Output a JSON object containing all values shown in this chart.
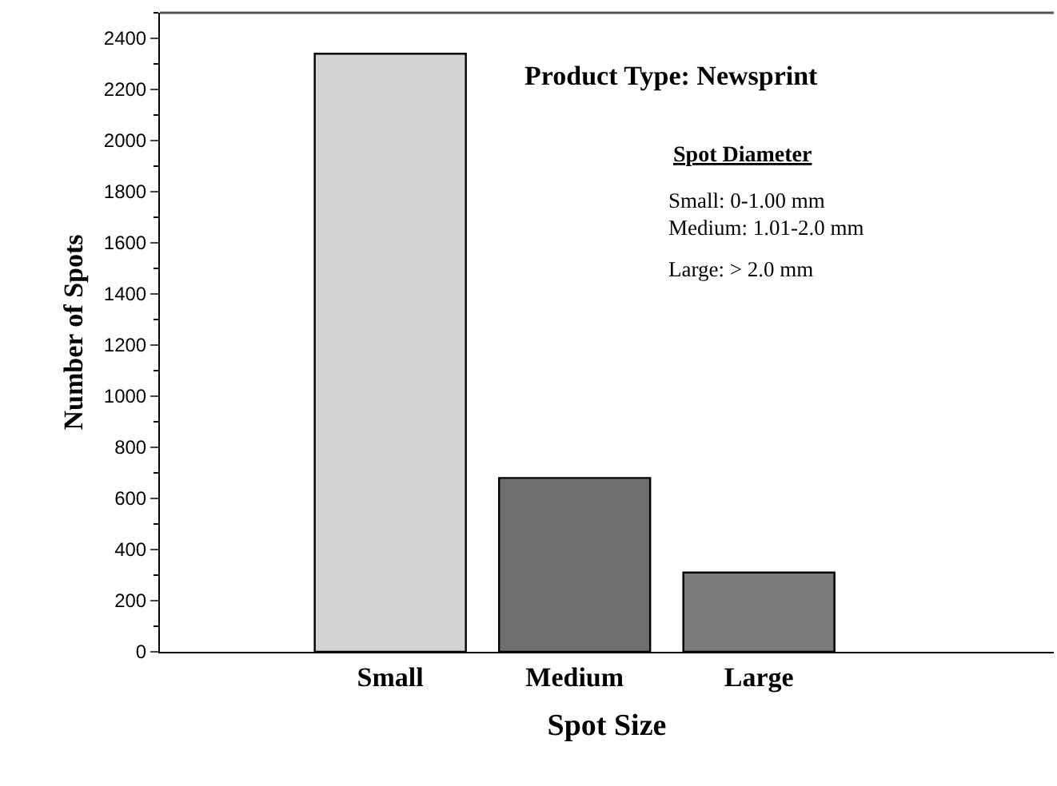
{
  "chart_data": {
    "type": "bar",
    "title": "Product Type: Newsprint",
    "xlabel": "Spot Size",
    "ylabel": "Number of Spots",
    "categories": [
      "Small",
      "Medium",
      "Large"
    ],
    "values": [
      2340,
      680,
      310
    ],
    "colors": [
      "#d3d3d3",
      "#6e6e6e",
      "#7a7a7a"
    ],
    "ylim": [
      0,
      2500
    ],
    "yticks": [
      0,
      200,
      400,
      600,
      800,
      1000,
      1200,
      1400,
      1600,
      1800,
      2000,
      2200,
      2400
    ],
    "annotations": [
      "Spot Diameter",
      "Small: 0-1.00 mm",
      "Medium: 1.01-2.0 mm",
      "Large: > 2.0 mm"
    ],
    "legend": false
  }
}
